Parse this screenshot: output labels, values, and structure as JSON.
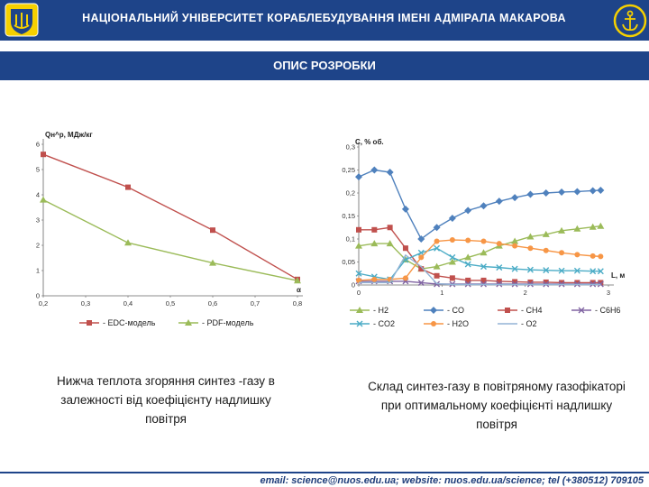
{
  "header": {
    "title": "НАЦІОНАЛЬНИЙ УНІВЕРСИТЕТ КОРАБЛЕБУДУВАННЯ ІМЕНІ АДМІРАЛА МАКАРОВА",
    "logo_left_icon": "university-crest-icon",
    "logo_right_icon": "anchor-emblem-icon"
  },
  "title_bar": {
    "text": "ОПИС РОЗРОБКИ"
  },
  "colors": {
    "brand": "#1e4489",
    "edc": "#c0504d",
    "pdf": "#9bbb59",
    "h2": "#9bbb59",
    "co": "#4f81bd",
    "ch4": "#c0504d",
    "c6h6": "#8064a2",
    "co2": "#4bacc6",
    "h2o": "#f79646",
    "o2": "#93b4d6"
  },
  "captions": {
    "left": "Нижча теплота згоряння синтез -газу в залежності від коефіцієнту надлишку повітря",
    "right": "Склад синтез-газу в повітряному газофікаторі при оптимальному коефіцієнті надлишку повітря"
  },
  "footer": {
    "text": "email: science@nuos.edu.ua; website: nuos.edu.ua/science; tel (+380512) 709105"
  },
  "chart_data": [
    {
      "type": "line",
      "ylabel": "Qн^р, МДж/кг",
      "xlabel": "α",
      "xlim": [
        0.2,
        0.8
      ],
      "ylim": [
        0,
        6
      ],
      "x_ticks": [
        "0,2",
        "0,3",
        "0,4",
        "0,5",
        "0,6",
        "0,7",
        "0,8"
      ],
      "y_ticks": [
        "0",
        "1",
        "2",
        "3",
        "4",
        "5",
        "6"
      ],
      "grid": false,
      "legend": "bottom",
      "series": [
        {
          "name": "- EDC-модель",
          "color": "#c0504d",
          "marker": "square",
          "x": [
            0.2,
            0.4,
            0.6,
            0.8
          ],
          "y": [
            5.6,
            4.3,
            2.6,
            0.65
          ]
        },
        {
          "name": "- PDF-модель",
          "color": "#9bbb59",
          "marker": "triangle",
          "x": [
            0.2,
            0.4,
            0.6,
            0.8
          ],
          "y": [
            3.8,
            2.1,
            1.3,
            0.6
          ]
        }
      ]
    },
    {
      "type": "line",
      "ylabel": "С, % об.",
      "xlabel": "L, м",
      "xlim": [
        0,
        3.2
      ],
      "ylim": [
        0,
        0.3
      ],
      "x_ticks": [
        "0",
        "1",
        "2",
        "3"
      ],
      "y_ticks": [
        "0",
        "0,05",
        "0,1",
        "0,15",
        "0,2",
        "0,25",
        "0,3"
      ],
      "grid": false,
      "legend": "bottom",
      "x": [
        0,
        0.2,
        0.4,
        0.6,
        0.8,
        1.0,
        1.2,
        1.4,
        1.6,
        1.8,
        2.0,
        2.2,
        2.4,
        2.6,
        2.8,
        3.0,
        3.1
      ],
      "series": [
        {
          "name": "- H2",
          "color": "#9bbb59",
          "marker": "triangle",
          "y": [
            0.085,
            0.09,
            0.09,
            0.055,
            0.035,
            0.04,
            0.05,
            0.06,
            0.07,
            0.085,
            0.095,
            0.105,
            0.11,
            0.118,
            0.122,
            0.126,
            0.128
          ]
        },
        {
          "name": "- CO",
          "color": "#4f81bd",
          "marker": "diamond",
          "y": [
            0.235,
            0.25,
            0.245,
            0.165,
            0.1,
            0.125,
            0.145,
            0.162,
            0.172,
            0.182,
            0.19,
            0.197,
            0.2,
            0.202,
            0.203,
            0.205,
            0.206
          ]
        },
        {
          "name": "- CH4",
          "color": "#c0504d",
          "marker": "square",
          "y": [
            0.12,
            0.12,
            0.125,
            0.08,
            0.035,
            0.02,
            0.015,
            0.01,
            0.01,
            0.008,
            0.007,
            0.006,
            0.006,
            0.005,
            0.005,
            0.005,
            0.005
          ]
        },
        {
          "name": "- C6H6",
          "color": "#8064a2",
          "marker": "x",
          "y": [
            0.008,
            0.008,
            0.008,
            0.008,
            0.005,
            0.002,
            0.002,
            0.002,
            0.002,
            0.002,
            0.002,
            0.002,
            0.002,
            0.002,
            0.002,
            0.002,
            0.002
          ]
        },
        {
          "name": "- CO2",
          "color": "#4bacc6",
          "marker": "x",
          "y": [
            0.025,
            0.018,
            0.012,
            0.055,
            0.07,
            0.08,
            0.06,
            0.045,
            0.04,
            0.038,
            0.035,
            0.033,
            0.032,
            0.031,
            0.031,
            0.03,
            0.03
          ]
        },
        {
          "name": "- H2O",
          "color": "#f79646",
          "marker": "circle",
          "y": [
            0.01,
            0.012,
            0.012,
            0.015,
            0.06,
            0.095,
            0.098,
            0.097,
            0.095,
            0.09,
            0.085,
            0.08,
            0.075,
            0.07,
            0.066,
            0.063,
            0.062
          ]
        },
        {
          "name": "- O2",
          "color": "#93b4d6",
          "marker": "none",
          "y": [
            0.005,
            0.005,
            0.005,
            0.065,
            0.04,
            0.003,
            0.001,
            0.001,
            0.001,
            0.001,
            0.001,
            0.001,
            0.001,
            0.001,
            0.001,
            0.001,
            0.001
          ]
        }
      ]
    }
  ]
}
